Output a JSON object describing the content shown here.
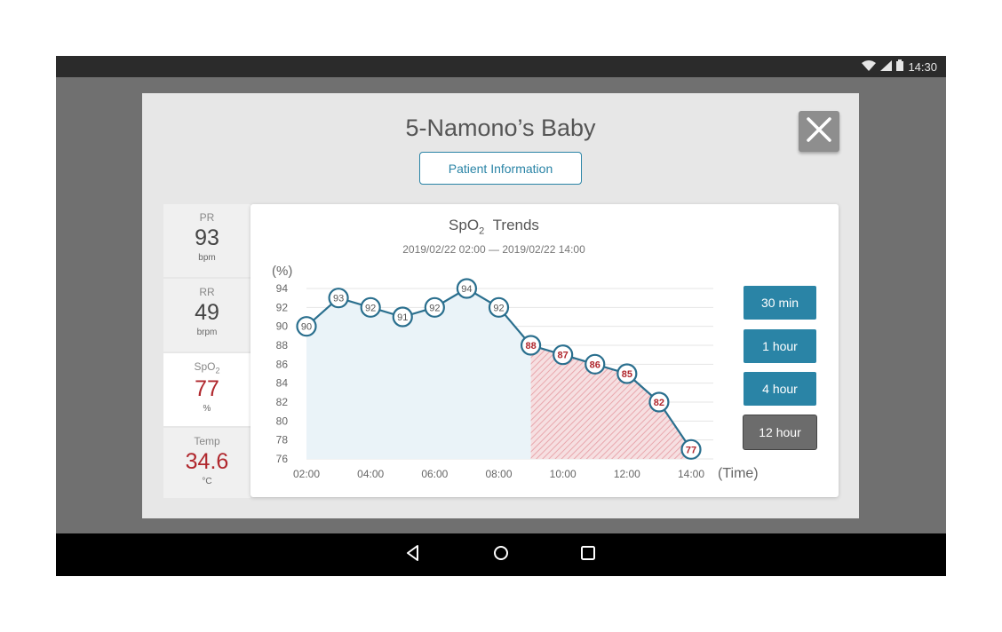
{
  "status": {
    "time": "14:30",
    "icons": [
      "wifi-icon",
      "cell-signal-icon",
      "battery-icon"
    ]
  },
  "dialog": {
    "title": "5-Namono’s Baby",
    "patient_info_button": "Patient Information",
    "close_icon": "close-icon"
  },
  "vitals": [
    {
      "label": "PR",
      "value": "93",
      "unit": "bpm",
      "alarm": false
    },
    {
      "label": "RR",
      "value": "49",
      "unit": "brpm",
      "alarm": false
    },
    {
      "label": "SpO",
      "label_sub": "2",
      "value": "77",
      "unit": "%",
      "alarm": true
    },
    {
      "label": "Temp",
      "value": "34.6",
      "unit": "°C",
      "alarm": true
    }
  ],
  "trend": {
    "title_main": "SpO",
    "title_sub": "2",
    "title_suffix": "Trends",
    "range": "2019/02/22 02:00 — 2019/02/22 14:00",
    "buttons": [
      "30 min",
      "1 hour",
      "4 hour",
      "12 hour"
    ],
    "selected_button": "12 hour"
  },
  "chart_data": {
    "type": "line",
    "ylabel": "(%)",
    "xlabel": "(Time)",
    "ylim": [
      76,
      94
    ],
    "yticks": [
      94,
      92,
      90,
      88,
      86,
      84,
      82,
      80,
      78,
      76
    ],
    "xlim": [
      "02:00",
      "14:00"
    ],
    "xticks": [
      "02:00",
      "04:00",
      "06:00",
      "08:00",
      "10:00",
      "12:00",
      "14:00"
    ],
    "grid": true,
    "threshold": 90,
    "points": [
      {
        "x": "02:00",
        "y": 90
      },
      {
        "x": "03:00",
        "y": 93
      },
      {
        "x": "04:00",
        "y": 92
      },
      {
        "x": "05:00",
        "y": 91
      },
      {
        "x": "06:00",
        "y": 92
      },
      {
        "x": "07:00",
        "y": 94
      },
      {
        "x": "08:00",
        "y": 92
      },
      {
        "x": "09:00",
        "y": 88
      },
      {
        "x": "10:00",
        "y": 87
      },
      {
        "x": "11:00",
        "y": 86
      },
      {
        "x": "12:00",
        "y": 85
      },
      {
        "x": "13:00",
        "y": 82
      },
      {
        "x": "14:00",
        "y": 77
      }
    ],
    "colors": {
      "line": "#2a6f8e",
      "normal_fill": "#eaf3f8",
      "alarm_fill": "#e8a7ad",
      "normal_text": "#555555",
      "alarm_text": "#b0272d"
    }
  }
}
